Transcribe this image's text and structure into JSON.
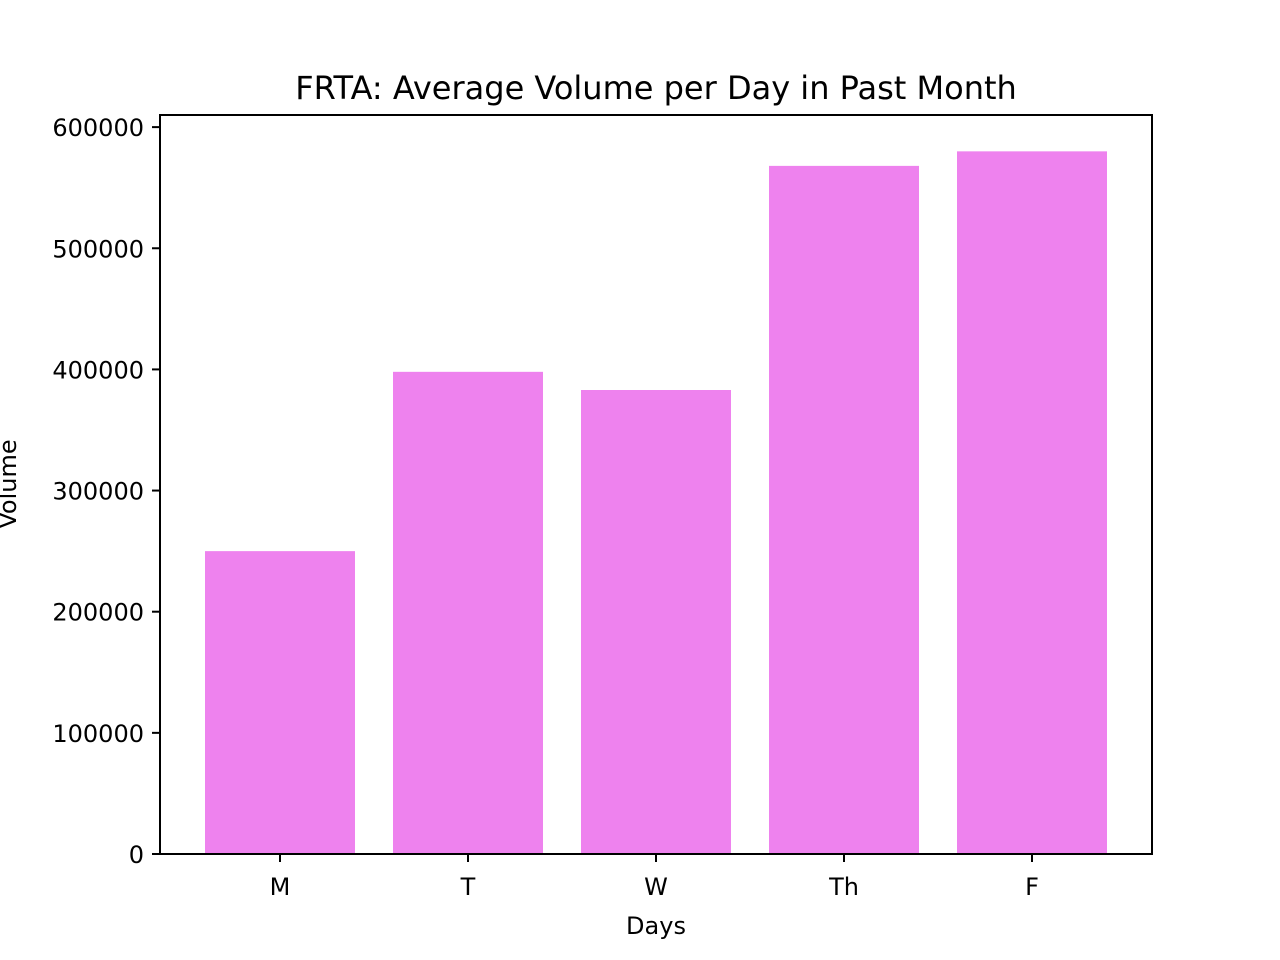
{
  "chart_data": {
    "type": "bar",
    "title": "FRTA: Average Volume per Day in Past Month",
    "xlabel": "Days",
    "ylabel": "Volume",
    "categories": [
      "M",
      "T",
      "W",
      "Th",
      "F"
    ],
    "values": [
      250000,
      398000,
      383000,
      568000,
      580000
    ],
    "ylim": [
      0,
      610000
    ],
    "yticks": [
      0,
      100000,
      200000,
      300000,
      400000,
      500000,
      600000
    ],
    "ytick_labels": [
      "0",
      "100000",
      "200000",
      "300000",
      "400000",
      "500000",
      "600000"
    ],
    "grid": false,
    "bar_color": "#ee82ee"
  }
}
